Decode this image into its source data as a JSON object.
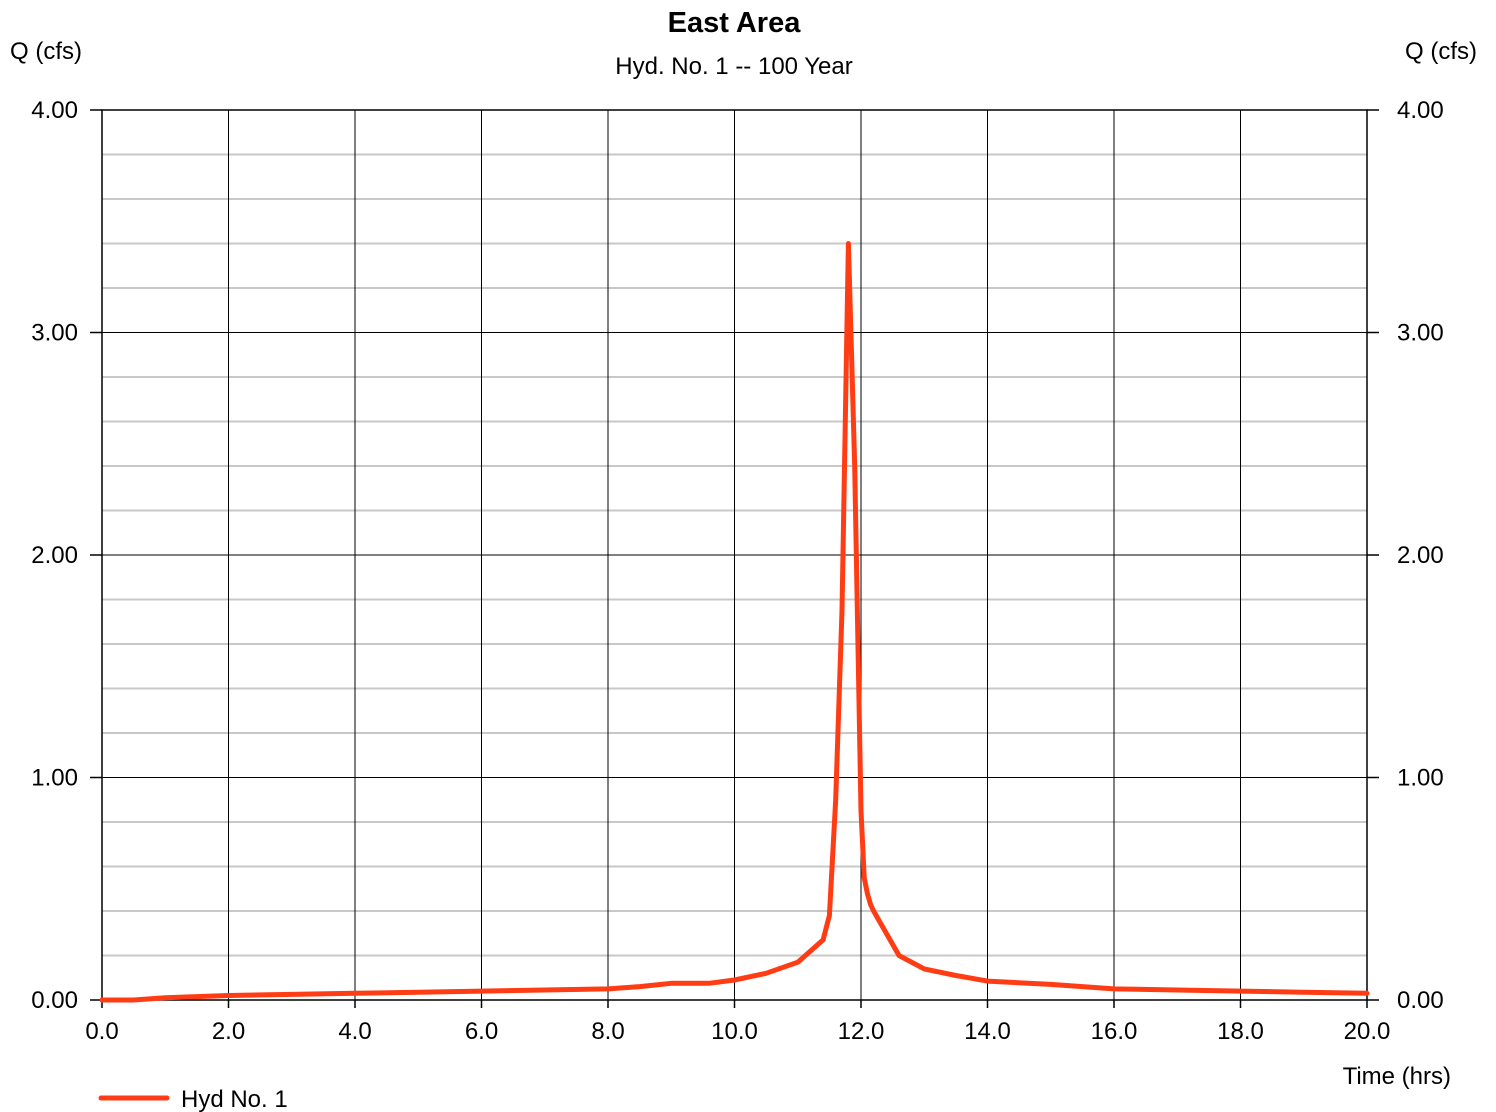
{
  "chart_data": {
    "type": "line",
    "title": "East Area",
    "subtitle": "Hyd. No. 1 -- 100 Year",
    "ylabel_left": "Q (cfs)",
    "ylabel_right": "Q (cfs)",
    "xlabel": "Time (hrs)",
    "xlim": [
      0,
      20
    ],
    "ylim": [
      0,
      4
    ],
    "x_ticks": [
      "0.0",
      "2.0",
      "4.0",
      "6.0",
      "8.0",
      "10.0",
      "12.0",
      "14.0",
      "16.0",
      "18.0",
      "20.0"
    ],
    "y_ticks": [
      "0.00",
      "1.00",
      "2.00",
      "3.00",
      "4.00"
    ],
    "grid": true,
    "minor_y_step": 0.2,
    "legend_position": "bottom-left",
    "series": [
      {
        "name": "Hyd No. 1",
        "color": "#ff3c14",
        "x": [
          0.0,
          0.5,
          1.0,
          2.0,
          3.0,
          4.0,
          5.0,
          6.0,
          7.0,
          8.0,
          8.5,
          9.0,
          9.6,
          10.0,
          10.5,
          11.0,
          11.4,
          11.5,
          11.6,
          11.7,
          11.8,
          11.9,
          12.0,
          12.05,
          12.1,
          12.15,
          12.2,
          12.6,
          13.0,
          13.5,
          14.0,
          15.0,
          16.0,
          17.0,
          18.0,
          19.0,
          20.0
        ],
        "y": [
          0.0,
          0.0,
          0.01,
          0.02,
          0.025,
          0.03,
          0.035,
          0.04,
          0.045,
          0.05,
          0.06,
          0.075,
          0.075,
          0.09,
          0.12,
          0.17,
          0.27,
          0.38,
          0.9,
          1.75,
          3.4,
          2.4,
          0.85,
          0.55,
          0.48,
          0.43,
          0.4,
          0.2,
          0.14,
          0.11,
          0.085,
          0.07,
          0.05,
          0.045,
          0.04,
          0.035,
          0.03
        ]
      }
    ]
  }
}
